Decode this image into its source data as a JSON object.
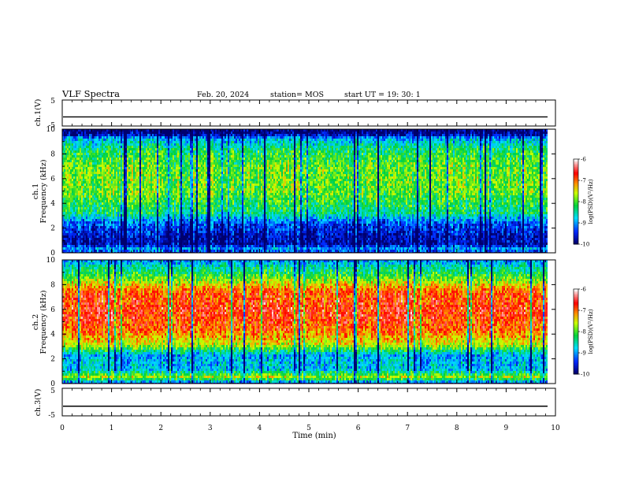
{
  "header": {
    "title": "VLF Spectra",
    "date": "Feb. 20, 2024",
    "station": "station= MOS",
    "start": "start  UT  =   19: 30: 1"
  },
  "chart_data": [
    {
      "type": "line",
      "panel": "ch1-waveform",
      "ylabel": "ch.1(V)",
      "yticks": [
        "5",
        "-5"
      ],
      "ylim": [
        -5,
        5
      ],
      "xlim": [
        0,
        10
      ],
      "series": [
        {
          "x": [
            0,
            9.84
          ],
          "values": [
            -1.5,
            -1.5
          ]
        }
      ]
    },
    {
      "type": "heatmap",
      "panel": "ch1-spectrogram",
      "ylabel": [
        "ch.1",
        "Frequency (kHz)"
      ],
      "yticks": [
        "0",
        "2",
        "4",
        "6",
        "8",
        "10"
      ],
      "ylim": [
        0,
        10
      ],
      "xlim": [
        0,
        10
      ],
      "data_end_min": 9.84,
      "freq_profile": [
        {
          "f": 0.0,
          "v": -9.8
        },
        {
          "f": 0.4,
          "v": -8.9
        },
        {
          "f": 0.8,
          "v": -9.8
        },
        {
          "f": 1.5,
          "v": -9.7
        },
        {
          "f": 2.5,
          "v": -9.3
        },
        {
          "f": 3.3,
          "v": -8.4
        },
        {
          "f": 5.0,
          "v": -7.9
        },
        {
          "f": 7.0,
          "v": -7.9
        },
        {
          "f": 8.5,
          "v": -8.3
        },
        {
          "f": 9.3,
          "v": -8.9
        },
        {
          "f": 9.7,
          "v": -9.9
        },
        {
          "f": 10.0,
          "v": -10.0
        }
      ],
      "colorbar": {
        "ticks": [
          "-6",
          "-7",
          "-8",
          "-9",
          "-10"
        ],
        "range": [
          -10,
          -6
        ],
        "label": "log(PSD)(V²/Hz)"
      }
    },
    {
      "type": "heatmap",
      "panel": "ch2-spectrogram",
      "ylabel": [
        "ch.2",
        "Frequency (kHz)"
      ],
      "yticks": [
        "0",
        "2",
        "4",
        "6",
        "8",
        "10"
      ],
      "ylim": [
        0,
        10
      ],
      "xlim": [
        0,
        10
      ],
      "data_end_min": 9.84,
      "freq_profile": [
        {
          "f": 0.0,
          "v": -9.8
        },
        {
          "f": 0.6,
          "v": -7.6
        },
        {
          "f": 1.2,
          "v": -8.8
        },
        {
          "f": 2.4,
          "v": -8.9
        },
        {
          "f": 3.2,
          "v": -7.6
        },
        {
          "f": 4.5,
          "v": -6.9
        },
        {
          "f": 6.0,
          "v": -6.7
        },
        {
          "f": 7.5,
          "v": -6.9
        },
        {
          "f": 8.3,
          "v": -7.6
        },
        {
          "f": 9.0,
          "v": -8.2
        },
        {
          "f": 9.6,
          "v": -8.6
        },
        {
          "f": 10.0,
          "v": -9.0
        }
      ],
      "colorbar": {
        "ticks": [
          "-6",
          "-7",
          "-8",
          "-9",
          "-10"
        ],
        "range": [
          -10,
          -6
        ],
        "label": "log(PSD)(V²/Hz)"
      }
    },
    {
      "type": "line",
      "panel": "ch3-waveform",
      "ylabel": "ch.3(V)",
      "yticks": [
        "5",
        "-5"
      ],
      "ylim": [
        -5,
        5
      ],
      "xlim": [
        0,
        10
      ],
      "xlabel": "Time  (min)",
      "xticks": [
        "0",
        "1",
        "2",
        "3",
        "4",
        "5",
        "6",
        "7",
        "8",
        "9",
        "10"
      ],
      "series": [
        {
          "x": [
            0,
            9.84
          ],
          "values": [
            -1.5,
            -1.5
          ]
        }
      ]
    }
  ]
}
